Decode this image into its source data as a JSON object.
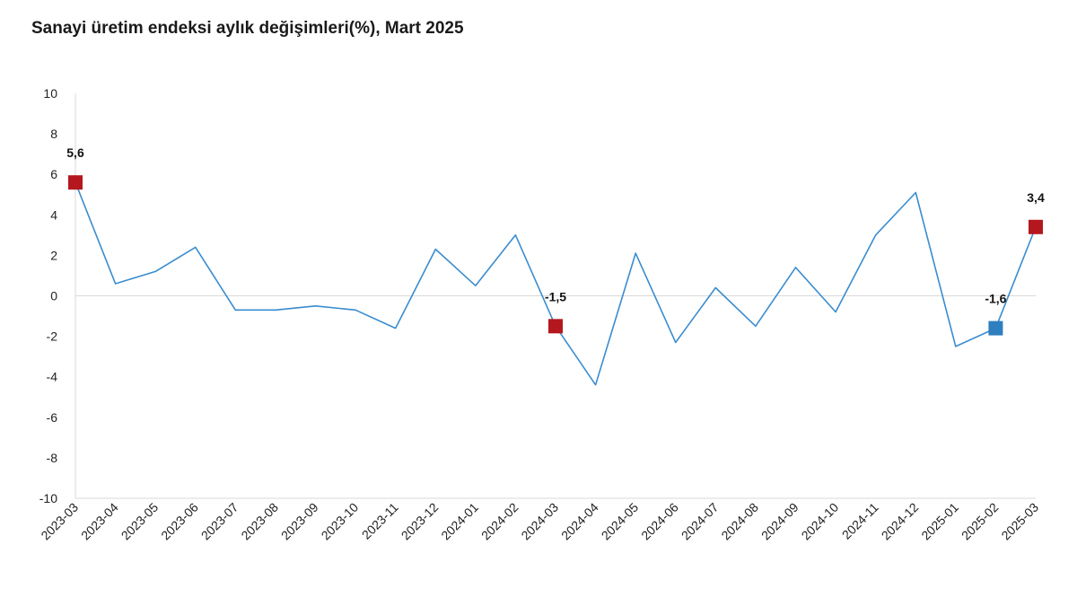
{
  "chart_data": {
    "type": "line",
    "title": "Sanayi üretim endeksi aylık değişimleri(%), Mart 2025",
    "xlabel": "",
    "ylabel": "",
    "ylim": [
      -10,
      10
    ],
    "yticks": [
      "10",
      "8",
      "6",
      "4",
      "2",
      "0",
      "-2",
      "-4",
      "-6",
      "-8",
      "-10"
    ],
    "grid": false,
    "categories": [
      "2023-03",
      "2023-04",
      "2023-05",
      "2023-06",
      "2023-07",
      "2023-08",
      "2023-09",
      "2023-10",
      "2023-11",
      "2023-12",
      "2024-01",
      "2024-02",
      "2024-03",
      "2024-04",
      "2024-05",
      "2024-06",
      "2024-07",
      "2024-08",
      "2024-09",
      "2024-10",
      "2024-11",
      "2024-12",
      "2025-01",
      "2025-02",
      "2025-03"
    ],
    "series": [
      {
        "values": [
          5.6,
          0.6,
          1.2,
          2.4,
          -0.7,
          -0.7,
          -0.5,
          -0.7,
          -1.6,
          2.3,
          0.5,
          3.0,
          -1.5,
          -4.4,
          2.1,
          -2.3,
          0.4,
          -1.5,
          1.4,
          -0.8,
          3.0,
          5.1,
          -2.5,
          -1.6,
          3.4
        ],
        "color": "#3a8ccf"
      }
    ],
    "markers": [
      {
        "index": 0,
        "label": "5,6",
        "color": "#b5171e"
      },
      {
        "index": 12,
        "label": "-1,5",
        "color": "#b5171e"
      },
      {
        "index": 23,
        "label": "-1,6",
        "color": "#2e7fbf"
      },
      {
        "index": 24,
        "label": "3,4",
        "color": "#b5171e"
      }
    ],
    "axis_color": "#d9d9d9"
  }
}
